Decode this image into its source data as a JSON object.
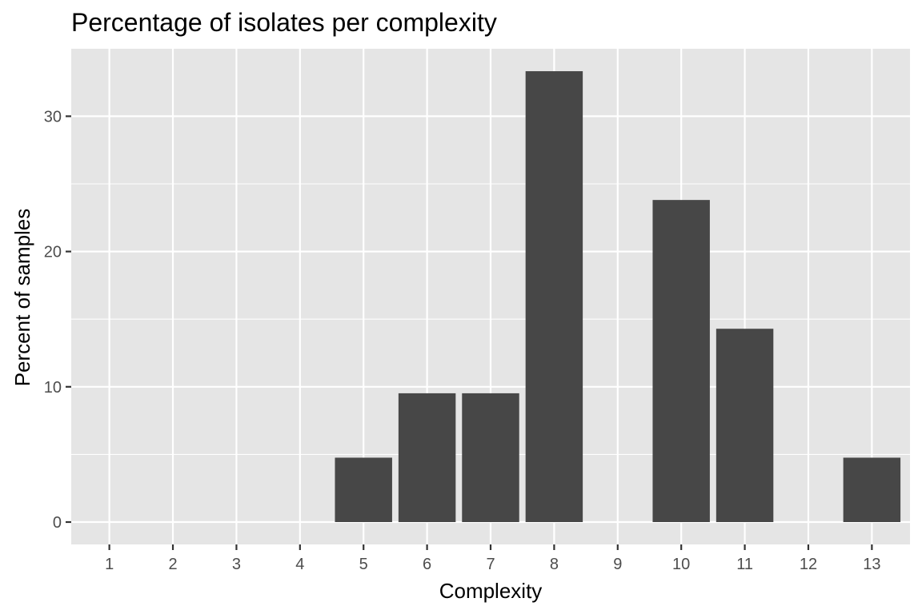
{
  "colors": {
    "panel_background": "#E5E5E5",
    "grid_major": "#FFFFFF",
    "bar_fill": "#474747",
    "tick_text": "#4D4D4D",
    "tick_mark": "#333333"
  },
  "chart_data": {
    "type": "bar",
    "title": "Percentage of isolates per complexity",
    "xlabel": "Complexity",
    "ylabel": "Percent of samples",
    "categories": [
      "1",
      "2",
      "3",
      "4",
      "5",
      "6",
      "7",
      "8",
      "9",
      "10",
      "11",
      "12",
      "13"
    ],
    "values": [
      0,
      0,
      0,
      0,
      4.76,
      9.52,
      9.52,
      33.33,
      0,
      23.81,
      14.29,
      0,
      4.76
    ],
    "ylim": [
      -1.67,
      35.0
    ],
    "yticks": [
      0,
      10,
      20,
      30
    ],
    "ytick_labels": [
      "0",
      "10",
      "20",
      "30"
    ],
    "grid": true,
    "legend": "none"
  }
}
